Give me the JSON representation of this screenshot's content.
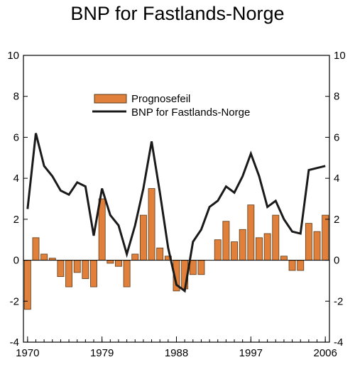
{
  "chart_data": {
    "type": "bar+line",
    "title": "BNP for Fastlands-Norge",
    "xlabel": "",
    "ylabel": "",
    "x_tick_labels": [
      "1970",
      "1979",
      "1988",
      "1997",
      "2006"
    ],
    "y_tick_labels": [
      "10",
      "8",
      "6",
      "4",
      "2",
      "0",
      "-2",
      "-4"
    ],
    "ylim": [
      -4,
      10
    ],
    "xlim": [
      1970,
      2006
    ],
    "legend_placement": "top-center",
    "grid": false,
    "colors": {
      "bar": "#e0803a",
      "bar_edge": "#5a3a1a",
      "line": "#1a1a1a"
    },
    "series": [
      {
        "name": "Prognosefeil",
        "type": "bar",
        "x": [
          1970,
          1971,
          1972,
          1973,
          1974,
          1975,
          1976,
          1977,
          1978,
          1979,
          1980,
          1981,
          1982,
          1983,
          1984,
          1985,
          1986,
          1987,
          1988,
          1989,
          1990,
          1991,
          1992,
          1993,
          1994,
          1995,
          1996,
          1997,
          1998,
          1999,
          2000,
          2001,
          2002,
          2003,
          2004,
          2005,
          2006
        ],
        "values": [
          -2.4,
          1.1,
          0.3,
          0.1,
          -0.8,
          -1.3,
          -0.6,
          -0.9,
          -1.3,
          3.0,
          -0.15,
          -0.3,
          -1.3,
          0.3,
          2.2,
          3.5,
          0.6,
          0.2,
          -1.5,
          -1.4,
          -0.7,
          -0.7,
          0.0,
          1.0,
          1.9,
          0.9,
          1.5,
          2.7,
          1.1,
          1.3,
          2.2,
          0.2,
          -0.5,
          -0.5,
          1.8,
          1.4,
          2.2
        ]
      },
      {
        "name": "BNP for Fastlands-Norge",
        "type": "line",
        "x": [
          1970,
          1971,
          1972,
          1973,
          1974,
          1975,
          1976,
          1977,
          1978,
          1979,
          1980,
          1981,
          1982,
          1983,
          1984,
          1985,
          1986,
          1987,
          1988,
          1989,
          1990,
          1991,
          1992,
          1993,
          1994,
          1995,
          1996,
          1997,
          1998,
          1999,
          2000,
          2001,
          2002,
          2003,
          2004,
          2005,
          2006
        ],
        "values": [
          2.5,
          6.2,
          4.6,
          4.1,
          3.4,
          3.2,
          3.8,
          3.6,
          1.2,
          3.5,
          2.2,
          1.7,
          0.3,
          1.7,
          3.5,
          5.8,
          3.3,
          0.6,
          -1.2,
          -1.5,
          0.9,
          1.5,
          2.6,
          2.9,
          3.6,
          3.3,
          4.1,
          5.2,
          4.1,
          2.6,
          2.9,
          2.0,
          1.4,
          1.3,
          4.4,
          4.5,
          4.6
        ]
      }
    ]
  }
}
